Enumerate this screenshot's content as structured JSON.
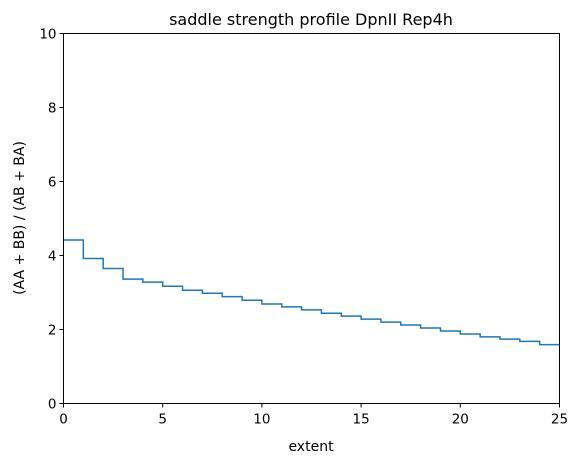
{
  "chart_data": {
    "type": "line",
    "drawstyle": "steps-post",
    "title": "saddle strength profile DpnII Rep4h",
    "xlabel": "extent",
    "ylabel": "(AA + BB) / (AB + BA)",
    "xlim": [
      0,
      25
    ],
    "ylim": [
      0,
      10
    ],
    "xticks": [
      0,
      5,
      10,
      15,
      20,
      25
    ],
    "yticks": [
      0,
      2,
      4,
      6,
      8,
      10
    ],
    "grid": false,
    "line_color": "#1f77b4",
    "series": [
      {
        "x": [
          0,
          1,
          2,
          3,
          4,
          5,
          6,
          7,
          8,
          9,
          10,
          11,
          12,
          13,
          14,
          15,
          16,
          17,
          18,
          19,
          20,
          21,
          22,
          23,
          24,
          25
        ],
        "values": [
          4.42,
          3.92,
          3.65,
          3.36,
          3.28,
          3.17,
          3.06,
          2.98,
          2.89,
          2.79,
          2.69,
          2.61,
          2.53,
          2.44,
          2.36,
          2.28,
          2.2,
          2.12,
          2.04,
          1.96,
          1.88,
          1.8,
          1.74,
          1.68,
          1.59,
          1.59
        ]
      }
    ]
  }
}
